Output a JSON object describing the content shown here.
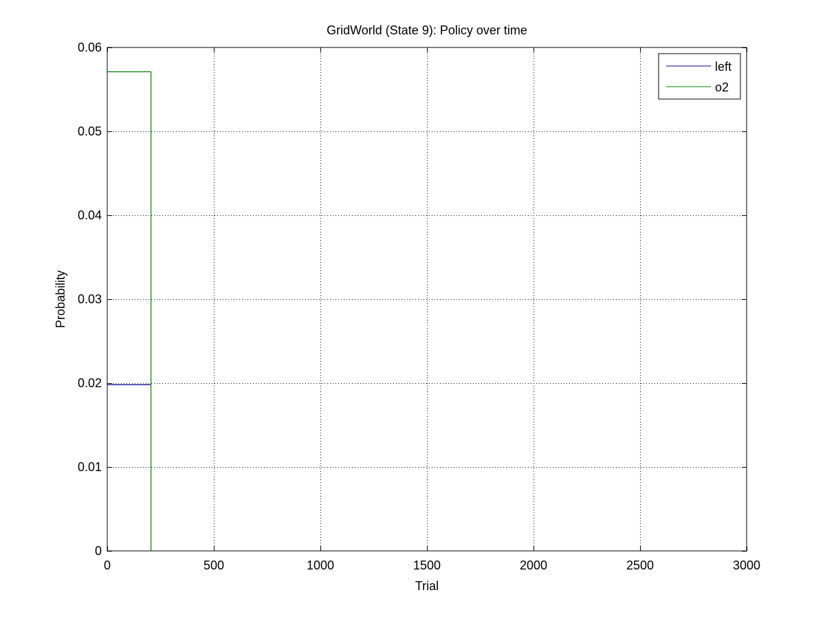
{
  "chart_data": {
    "type": "line",
    "title": "GridWorld (State 9): Policy over time",
    "xlabel": "Trial",
    "ylabel": "Probability",
    "xlim": [
      0,
      3000
    ],
    "ylim": [
      0,
      0.06
    ],
    "xticks": [
      0,
      500,
      1000,
      1500,
      2000,
      2500,
      3000
    ],
    "xtick_labels": [
      "0",
      "500",
      "1000",
      "1500",
      "2000",
      "2500",
      "3000"
    ],
    "yticks": [
      0,
      0.01,
      0.02,
      0.03,
      0.04,
      0.05,
      0.06
    ],
    "ytick_labels": [
      "0",
      "0.01",
      "0.02",
      "0.03",
      "0.04",
      "0.05",
      "0.06"
    ],
    "grid": true,
    "legend_position": "top-right",
    "series": [
      {
        "name": "left",
        "color": "#00008b",
        "x": [
          0,
          205
        ],
        "y": [
          0.0198,
          0.0198
        ]
      },
      {
        "name": "o2",
        "color": "#008000",
        "x": [
          0,
          205,
          205
        ],
        "y": [
          0.0571,
          0.0571,
          0
        ]
      }
    ]
  }
}
